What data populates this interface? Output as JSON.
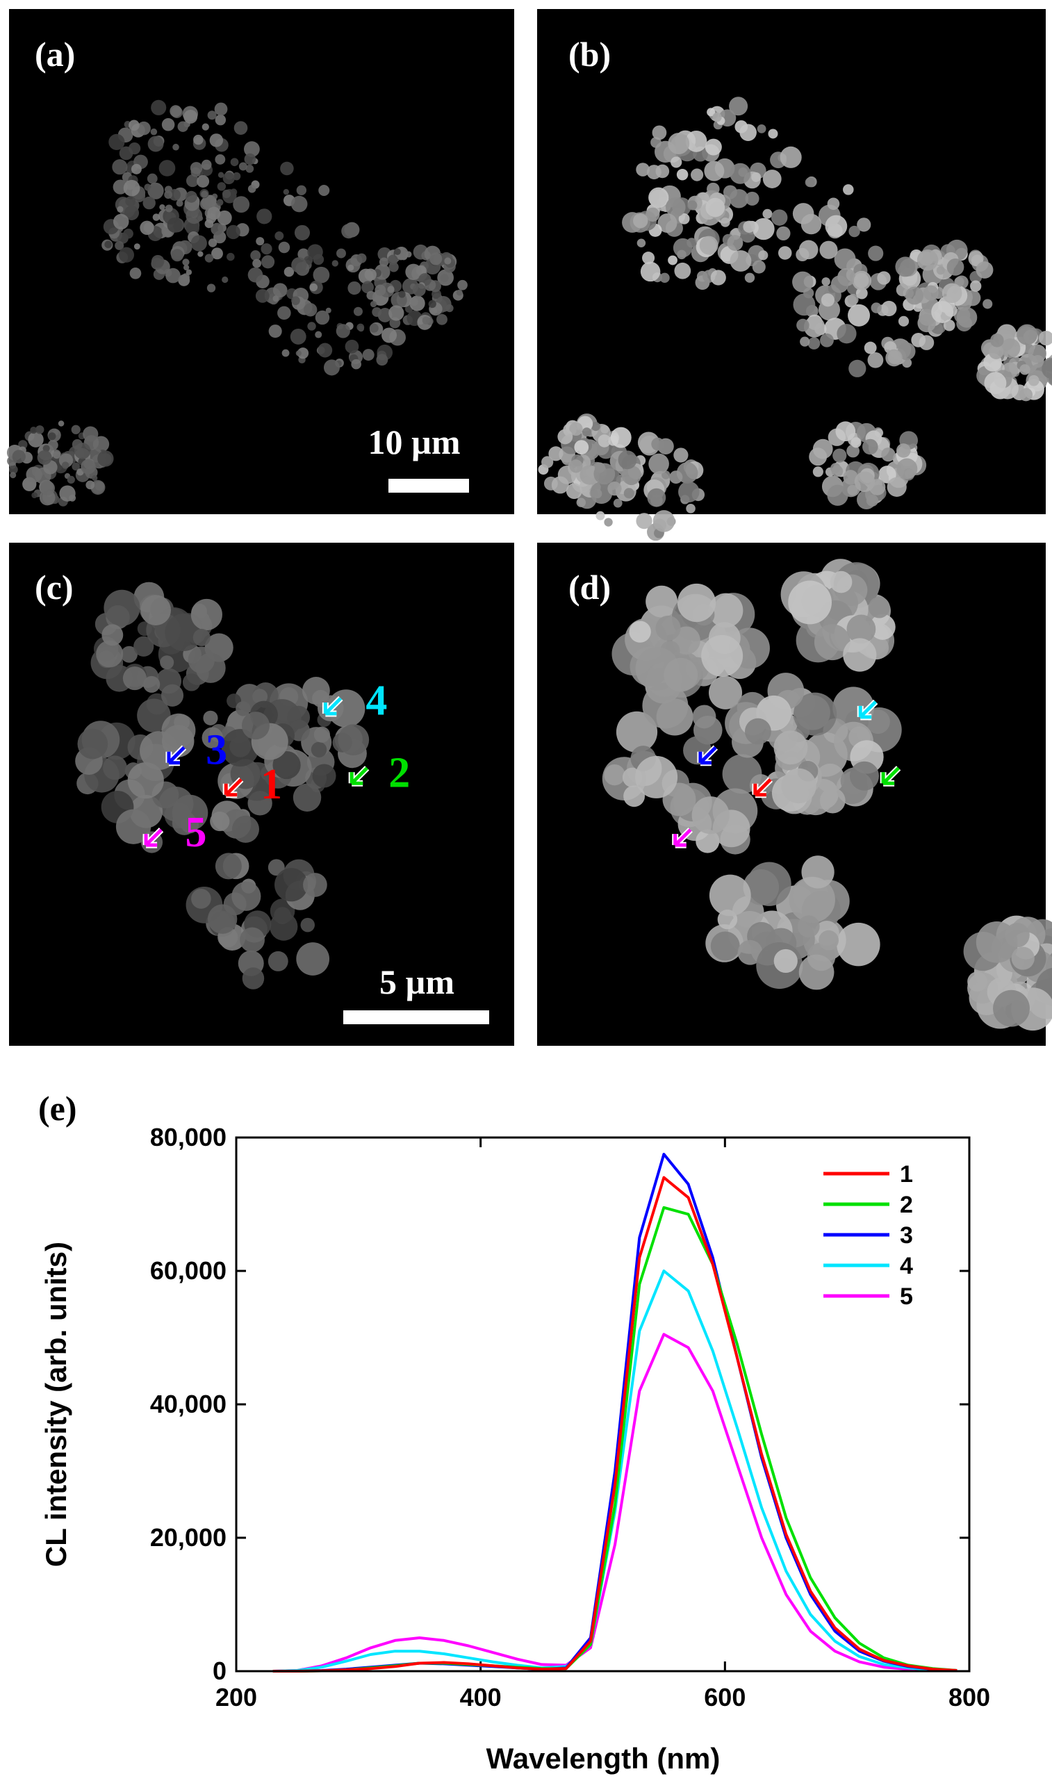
{
  "panels": {
    "a": {
      "label": "(a)",
      "scale": "10 µm"
    },
    "b": {
      "label": "(b)"
    },
    "c": {
      "label": "(c)",
      "scale": "5 µm",
      "markers": [
        "1",
        "2",
        "3",
        "4",
        "5"
      ]
    },
    "d": {
      "label": "(d)"
    }
  },
  "chart_data": {
    "type": "line",
    "label": "(e)",
    "xlabel": "Wavelength (nm)",
    "ylabel": "CL intensity (arb. units)",
    "x": [
      230,
      250,
      270,
      290,
      310,
      330,
      350,
      370,
      390,
      410,
      430,
      450,
      470,
      490,
      510,
      530,
      550,
      570,
      590,
      610,
      630,
      650,
      670,
      690,
      710,
      730,
      750,
      770,
      790
    ],
    "series": [
      {
        "name": "1",
        "color": "#ff0000",
        "values": [
          0,
          0,
          50,
          200,
          400,
          700,
          1200,
          1300,
          1100,
          800,
          500,
          300,
          400,
          4500,
          28000,
          62000,
          74000,
          71000,
          61000,
          47000,
          32500,
          20500,
          12000,
          6500,
          3300,
          1600,
          800,
          300,
          100
        ]
      },
      {
        "name": "2",
        "color": "#00e000",
        "values": [
          0,
          0,
          50,
          200,
          500,
          800,
          1200,
          1200,
          1000,
          800,
          600,
          400,
          400,
          4000,
          25000,
          58000,
          69500,
          68500,
          61000,
          49000,
          35500,
          23000,
          14000,
          8000,
          4200,
          2000,
          900,
          400,
          100
        ]
      },
      {
        "name": "3",
        "color": "#0000ff",
        "values": [
          0,
          0,
          100,
          300,
          600,
          900,
          1200,
          1100,
          900,
          700,
          500,
          300,
          500,
          5000,
          30000,
          65000,
          77500,
          73000,
          62000,
          47000,
          32000,
          20000,
          11500,
          6000,
          3000,
          1500,
          700,
          300,
          100
        ]
      },
      {
        "name": "4",
        "color": "#00e5ff",
        "values": [
          0,
          100,
          600,
          1500,
          2500,
          3000,
          3000,
          2600,
          2000,
          1400,
          900,
          500,
          700,
          4000,
          24000,
          51000,
          60000,
          57000,
          48000,
          36500,
          24500,
          15000,
          8500,
          4500,
          2200,
          1000,
          500,
          200,
          50
        ]
      },
      {
        "name": "5",
        "color": "#ff00ff",
        "values": [
          0,
          100,
          800,
          2000,
          3500,
          4600,
          5000,
          4600,
          3800,
          2800,
          1800,
          1000,
          900,
          3500,
          19000,
          42000,
          50500,
          48500,
          42000,
          31000,
          20000,
          11500,
          6000,
          3000,
          1400,
          600,
          300,
          100,
          50
        ]
      }
    ],
    "xlim": [
      200,
      800
    ],
    "xticks": [
      200,
      400,
      600,
      800
    ],
    "ylim": [
      0,
      80000
    ],
    "yticks": [
      0,
      {
        "value": 20000,
        "label": "20,000"
      },
      {
        "value": 40000,
        "label": "40,000"
      },
      {
        "value": 60000,
        "label": "60,000"
      },
      {
        "value": 80000,
        "label": "80,000"
      }
    ],
    "legend": "upper right"
  }
}
